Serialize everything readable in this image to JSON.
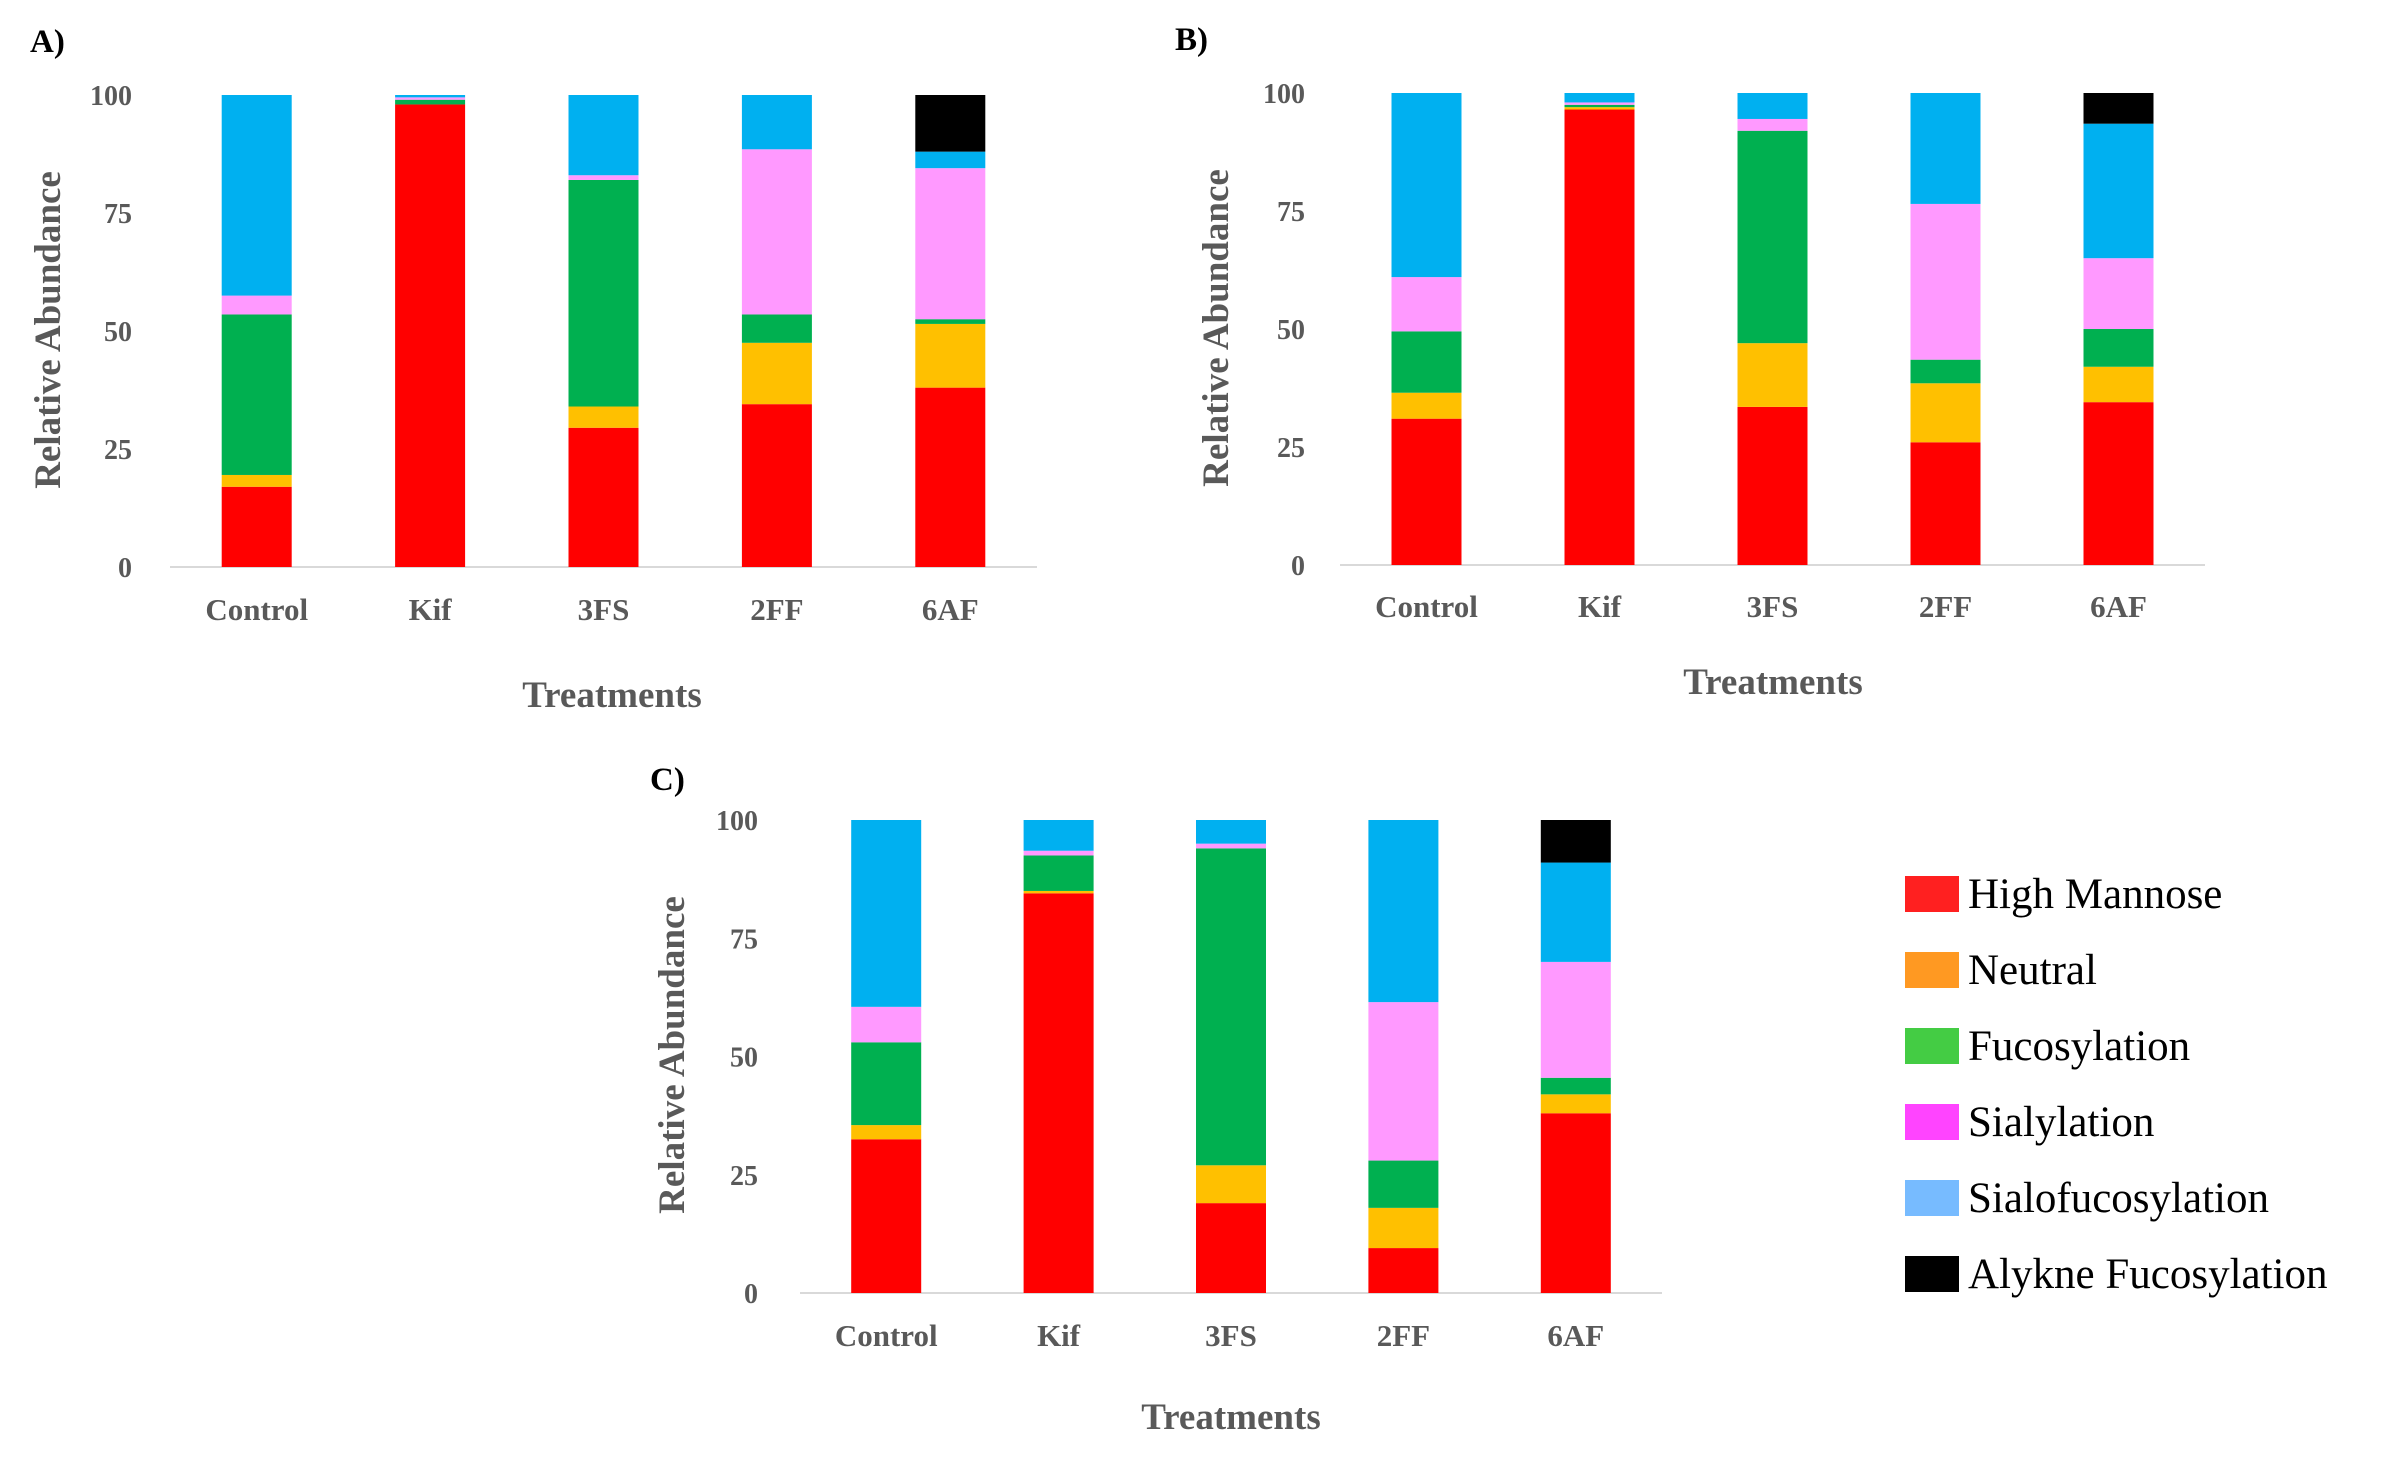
{
  "figure": {
    "colors": {
      "High Mannose": "#ff0000",
      "Neutral": "#ffc000",
      "Fucosylation": "#00b050",
      "Sialylation": "#ff99ff",
      "Sialofucosylation": "#00b0f0",
      "Alykne Fucosylation": "#000000"
    },
    "legend": {
      "items": [
        {
          "label": "High Mannose",
          "color": "#ff2020"
        },
        {
          "label": "Neutral",
          "color": "#ff9922"
        },
        {
          "label": "Fucosylation",
          "color": "#44cc44"
        },
        {
          "label": "Sialylation",
          "color": "#ff44ff"
        },
        {
          "label": "Sialofucosylation",
          "color": "#77bbff"
        },
        {
          "label": "Alykne Fucosylation",
          "color": "#000000"
        }
      ]
    }
  },
  "chart_data": [
    {
      "panel": "A)",
      "type": "bar",
      "stacked": true,
      "xlabel": "Treatments",
      "ylabel": "Relative Abundance",
      "ylim": [
        0,
        100
      ],
      "yticks": [
        0,
        25,
        50,
        75,
        100
      ],
      "categories": [
        "Control",
        "Kif",
        "3FS",
        "2FF",
        "6AF"
      ],
      "series": [
        {
          "name": "High Mannose",
          "values": [
            17,
            98,
            29.5,
            34.5,
            38
          ]
        },
        {
          "name": "Neutral",
          "values": [
            2.5,
            0,
            4.5,
            13,
            13.5
          ]
        },
        {
          "name": "Fucosylation",
          "values": [
            34,
            1,
            48,
            6,
            1
          ]
        },
        {
          "name": "Sialylation",
          "values": [
            4,
            0.5,
            1,
            35,
            32
          ]
        },
        {
          "name": "Sialofucosylation",
          "values": [
            42.5,
            0.5,
            17,
            11.5,
            3.5
          ]
        },
        {
          "name": "Alykne Fucosylation",
          "values": [
            0,
            0,
            0,
            0,
            12
          ]
        }
      ]
    },
    {
      "panel": "B)",
      "type": "bar",
      "stacked": true,
      "xlabel": "Treatments",
      "ylabel": "Relative Abundance",
      "ylim": [
        0,
        100
      ],
      "yticks": [
        0,
        25,
        50,
        75,
        100
      ],
      "categories": [
        "Control",
        "Kif",
        "3FS",
        "2FF",
        "6AF"
      ],
      "series": [
        {
          "name": "High Mannose",
          "values": [
            31,
            96.5,
            33.5,
            26,
            34.5
          ]
        },
        {
          "name": "Neutral",
          "values": [
            5.5,
            0.5,
            13.5,
            12.5,
            7.5
          ]
        },
        {
          "name": "Fucosylation",
          "values": [
            13,
            0.5,
            45,
            5,
            8
          ]
        },
        {
          "name": "Sialylation",
          "values": [
            11.5,
            0.5,
            2.5,
            33,
            15
          ]
        },
        {
          "name": "Sialofucosylation",
          "values": [
            39,
            2,
            5.5,
            23.5,
            28.5
          ]
        },
        {
          "name": "Alykne Fucosylation",
          "values": [
            0,
            0,
            0,
            0,
            6.5
          ]
        }
      ]
    },
    {
      "panel": "C)",
      "type": "bar",
      "stacked": true,
      "xlabel": "Treatments",
      "ylabel": "Relative Abundance",
      "ylim": [
        0,
        100
      ],
      "yticks": [
        0,
        25,
        50,
        75,
        100
      ],
      "categories": [
        "Control",
        "Kif",
        "3FS",
        "2FF",
        "6AF"
      ],
      "series": [
        {
          "name": "High Mannose",
          "values": [
            32.5,
            84.5,
            19,
            9.5,
            38
          ]
        },
        {
          "name": "Neutral",
          "values": [
            3,
            0.5,
            8,
            8.5,
            4
          ]
        },
        {
          "name": "Fucosylation",
          "values": [
            17.5,
            7.5,
            67,
            10,
            3.5
          ]
        },
        {
          "name": "Sialylation",
          "values": [
            7.5,
            1,
            1,
            33.5,
            24.5
          ]
        },
        {
          "name": "Sialofucosylation",
          "values": [
            39.5,
            6.5,
            5,
            38.5,
            21
          ]
        },
        {
          "name": "Alykne Fucosylation",
          "values": [
            0,
            0,
            0,
            0,
            9
          ]
        }
      ]
    }
  ]
}
